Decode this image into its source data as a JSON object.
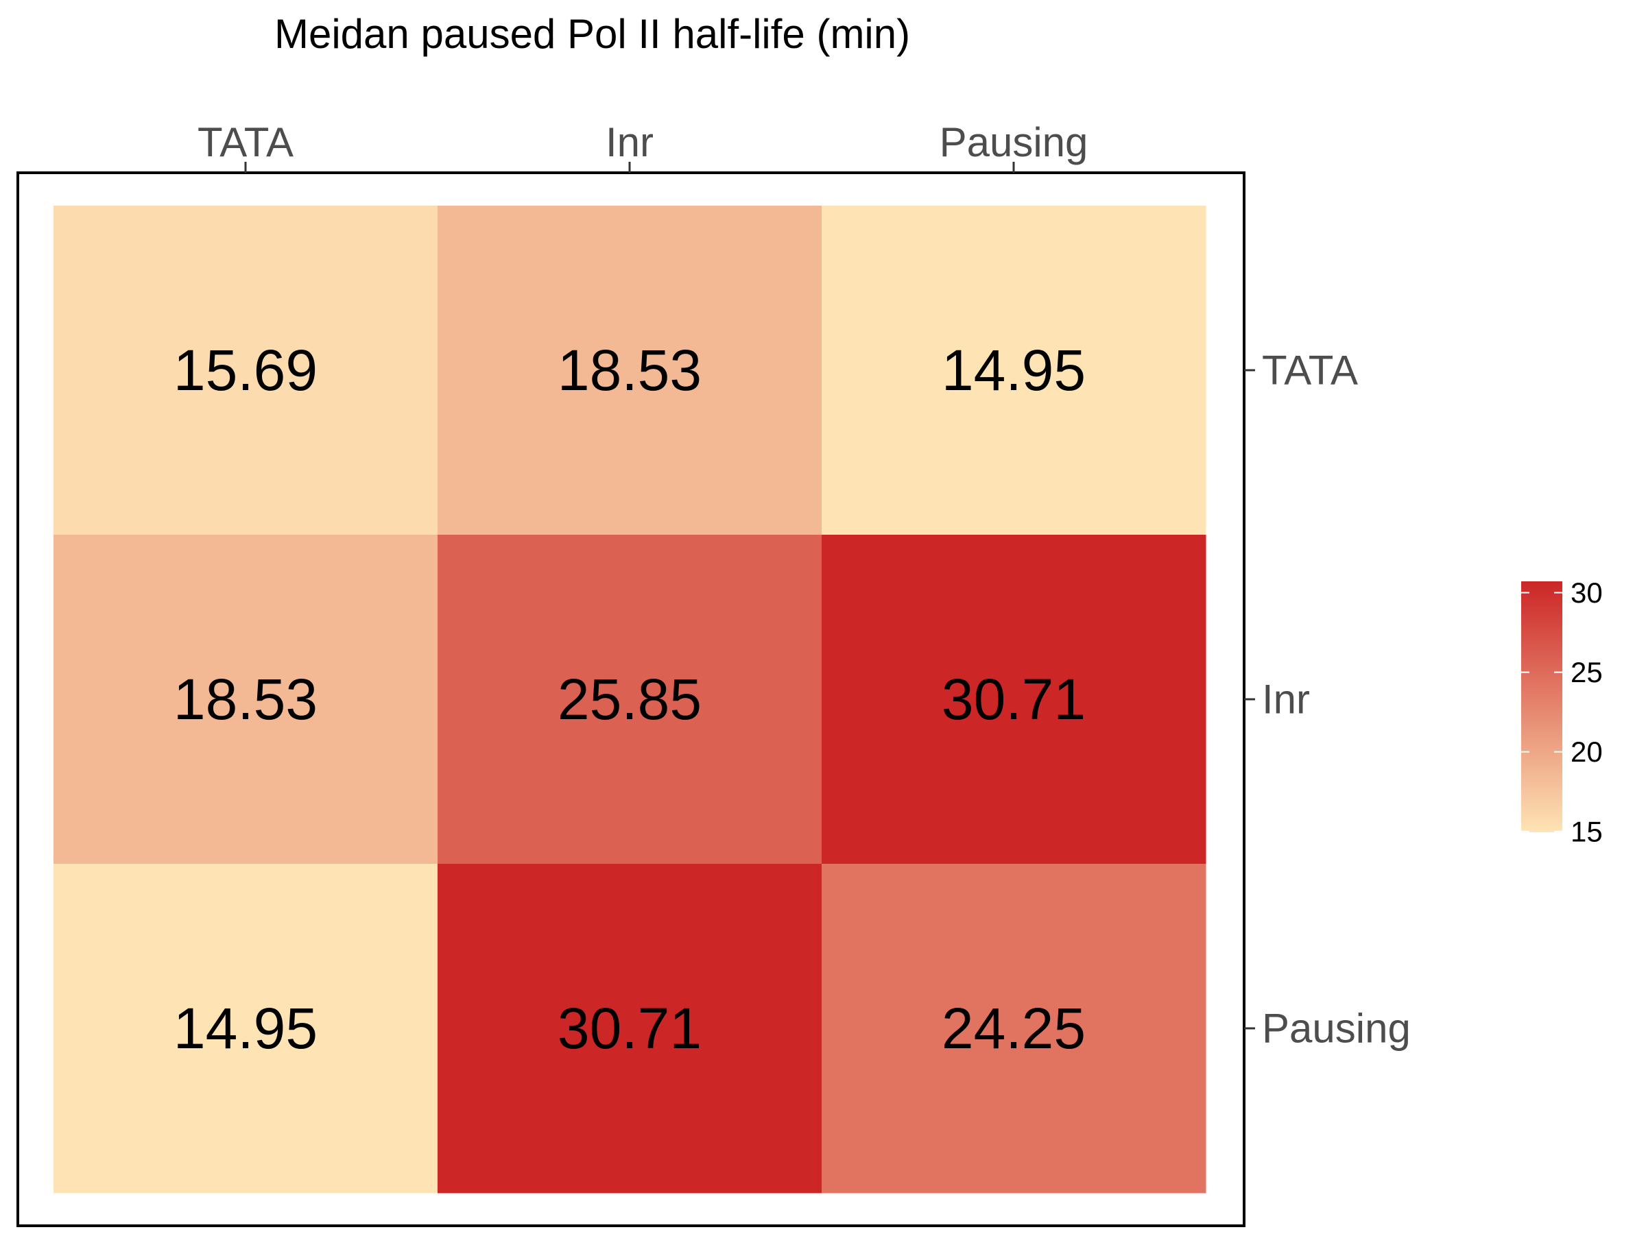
{
  "chart_data": {
    "type": "heatmap",
    "title": "Meidan paused Pol II half-life (min)",
    "x_categories": [
      "TATA",
      "Inr",
      "Pausing"
    ],
    "y_categories": [
      "TATA",
      "Inr",
      "Pausing"
    ],
    "values": [
      [
        15.69,
        18.53,
        14.95
      ],
      [
        18.53,
        25.85,
        30.71
      ],
      [
        14.95,
        30.71,
        24.25
      ]
    ],
    "cell_labels": [
      [
        "15.69",
        "18.53",
        "14.95"
      ],
      [
        "18.53",
        "25.85",
        "30.71"
      ],
      [
        "14.95",
        "30.71",
        "24.25"
      ]
    ],
    "x_axis_position": "top",
    "y_axis_position": "right",
    "color_scale": {
      "min": 14.95,
      "max": 30.71,
      "low_color": "#fee4b5",
      "high_color": "#cc2627",
      "ticks": [
        15,
        20,
        25,
        30
      ],
      "tick_labels": [
        "15",
        "20",
        "25",
        "30"
      ]
    },
    "legend_position": "right",
    "grid": false
  }
}
